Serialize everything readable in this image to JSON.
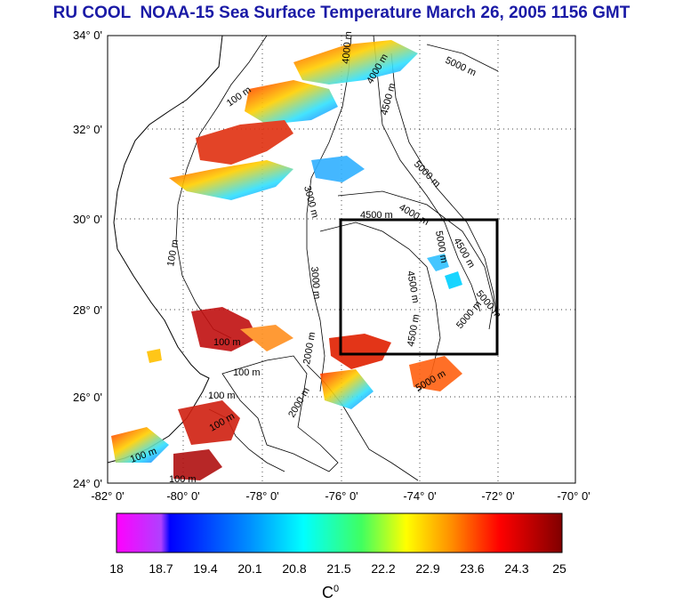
{
  "title": "RU COOL  NOAA-15 Sea Surface Temperature March 26, 2005 1156 GMT",
  "axes": {
    "lon_labels": [
      "-82° 0'",
      "-80° 0'",
      "-78° 0'",
      "-76° 0'",
      "-74° 0'",
      "-72° 0'",
      "-70° 0'"
    ],
    "lat_labels": [
      "34° 0'",
      "32° 0'",
      "30° 0'",
      "28° 0'",
      "26° 0'",
      "24° 0'"
    ]
  },
  "contour_labels": [
    "100 m",
    "100 m",
    "100 m",
    "100 m",
    "100 m",
    "100 m",
    "100 m",
    "100 m",
    "3000 m",
    "3000 m",
    "4000 m",
    "4000 m",
    "4000 m",
    "4500 m",
    "4500 m",
    "4500 m",
    "4500 m",
    "4500 m",
    "5000 m",
    "5000 m",
    "5000 m",
    "5000 m",
    "5000 m",
    "5000 m",
    "2000 m",
    "2000 m"
  ],
  "colorbar": {
    "ticks": [
      "18",
      "18.7",
      "19.4",
      "20.1",
      "20.8",
      "21.5",
      "22.2",
      "22.9",
      "23.6",
      "24.3",
      "25"
    ],
    "unit": "C",
    "unit_sup": "0",
    "colors": [
      "#ff00ff",
      "#0000ff",
      "#00ffff",
      "#ffff00",
      "#ff0000",
      "#800000"
    ]
  },
  "study_box": {
    "lon": [
      -76,
      -72
    ],
    "lat": [
      27,
      30
    ]
  }
}
